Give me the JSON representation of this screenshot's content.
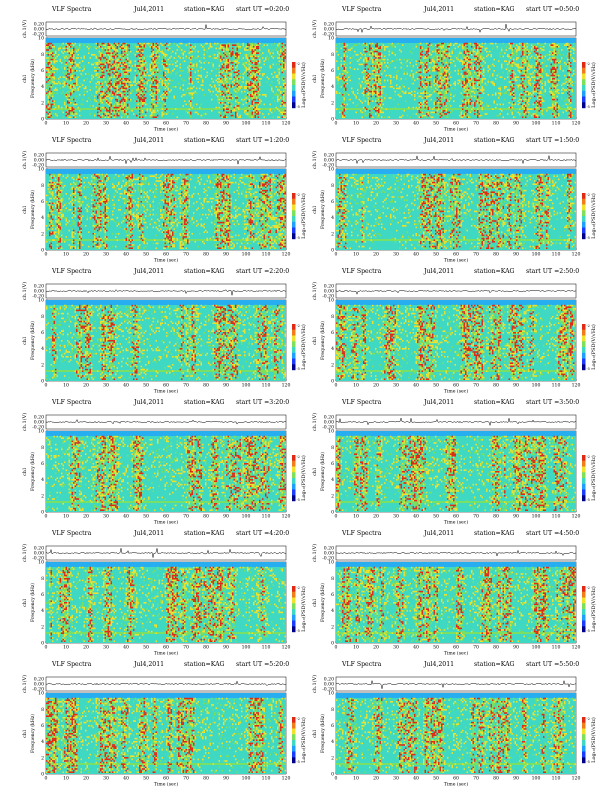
{
  "figure": {
    "panel_title": "VLF Spectra",
    "date": "Jul4,2011",
    "station": "station=KAG",
    "start_prefix": "start UT"
  },
  "chart_data": [
    {
      "type": "heatmap",
      "start_ut": "=0:20:0",
      "x_ticks": [
        0,
        10,
        20,
        30,
        40,
        50,
        60,
        70,
        80,
        90,
        100,
        110,
        120
      ],
      "y_ticks": [
        0,
        2,
        4,
        6,
        8,
        10
      ],
      "ch1_ticks": [
        "0.20",
        "0.00",
        "-0.20"
      ],
      "xlabel": "Time  (sec)",
      "ylabel": "Frequency  (kHz)",
      "ylabel2": "ch1",
      "ch1_label": "ch.1(V)",
      "colorbar_label": "Log₁₀(PSD(V/√Hz)",
      "cb_tick_top": "-2",
      "cb_tick_bottom": "-5"
    },
    {
      "type": "heatmap",
      "start_ut": "=0:50:0",
      "x_ticks": [
        0,
        10,
        20,
        30,
        40,
        50,
        60,
        70,
        80,
        90,
        100,
        110,
        120
      ],
      "y_ticks": [
        0,
        2,
        4,
        6,
        8,
        10
      ],
      "ch1_ticks": [
        "0.20",
        "0.00",
        "-0.20"
      ],
      "xlabel": "Time  (sec)",
      "ylabel": "Frequency  (kHz)",
      "ylabel2": "ch1",
      "ch1_label": "ch.1(V)",
      "colorbar_label": "Log₁₀(PSD(V/√Hz)",
      "cb_tick_top": "-2",
      "cb_tick_bottom": "-5"
    },
    {
      "type": "heatmap",
      "start_ut": "=1:20:0",
      "x_ticks": [
        0,
        10,
        20,
        30,
        40,
        50,
        60,
        70,
        80,
        90,
        100,
        110,
        120
      ],
      "y_ticks": [
        0,
        2,
        4,
        6,
        8,
        10
      ],
      "ch1_ticks": [
        "0.20",
        "0.00",
        "-0.20"
      ],
      "xlabel": "Time  (sec)",
      "ylabel": "Frequency  (kHz)",
      "ylabel2": "ch1",
      "ch1_label": "ch.1(V)",
      "colorbar_label": "Log₁₀(PSD(V/√Hz)",
      "cb_tick_top": "-2",
      "cb_tick_bottom": "-5"
    },
    {
      "type": "heatmap",
      "start_ut": "=1:50:0",
      "x_ticks": [
        0,
        10,
        20,
        30,
        40,
        50,
        60,
        70,
        80,
        90,
        100,
        110,
        120
      ],
      "y_ticks": [
        0,
        2,
        4,
        6,
        8,
        10
      ],
      "ch1_ticks": [
        "0.20",
        "0.00",
        "-0.20"
      ],
      "xlabel": "Time  (sec)",
      "ylabel": "Frequency  (kHz)",
      "ylabel2": "ch1",
      "ch1_label": "ch.1(V)",
      "colorbar_label": "Log₁₀(PSD(V/√Hz)",
      "cb_tick_top": "-2",
      "cb_tick_bottom": "-5"
    },
    {
      "type": "heatmap",
      "start_ut": "=2:20:0",
      "x_ticks": [
        0,
        10,
        20,
        30,
        40,
        50,
        60,
        70,
        80,
        90,
        100,
        110,
        120
      ],
      "y_ticks": [
        0,
        2,
        4,
        6,
        8,
        10
      ],
      "ch1_ticks": [
        "0.20",
        "0.00",
        "-0.20"
      ],
      "xlabel": "Time  (sec)",
      "ylabel": "Frequency  (kHz)",
      "ylabel2": "ch1",
      "ch1_label": "ch.1(V)",
      "colorbar_label": "Log₁₀(PSD(V/√Hz)",
      "cb_tick_top": "-2",
      "cb_tick_bottom": "-5"
    },
    {
      "type": "heatmap",
      "start_ut": "=2:50:0",
      "x_ticks": [
        0,
        10,
        20,
        30,
        40,
        50,
        60,
        70,
        80,
        90,
        100,
        110,
        120
      ],
      "y_ticks": [
        0,
        2,
        4,
        6,
        8,
        10
      ],
      "ch1_ticks": [
        "0.20",
        "0.00",
        "-0.20"
      ],
      "xlabel": "Time  (sec)",
      "ylabel": "Frequency  (kHz)",
      "ylabel2": "ch1",
      "ch1_label": "ch.1(V)",
      "colorbar_label": "Log₁₀(PSD(V/√Hz)",
      "cb_tick_top": "-2",
      "cb_tick_bottom": "-5"
    },
    {
      "type": "heatmap",
      "start_ut": "=3:20:0",
      "x_ticks": [
        0,
        10,
        20,
        30,
        40,
        50,
        60,
        70,
        80,
        90,
        100,
        110,
        120
      ],
      "y_ticks": [
        0,
        2,
        4,
        6,
        8,
        10
      ],
      "ch1_ticks": [
        "0.20",
        "0.00",
        "-0.20"
      ],
      "xlabel": "Time  (sec)",
      "ylabel": "Frequency  (kHz)",
      "ylabel2": "ch1",
      "ch1_label": "ch.1(V)",
      "colorbar_label": "Log₁₀(PSD(V/√Hz)",
      "cb_tick_top": "-2",
      "cb_tick_bottom": "-5"
    },
    {
      "type": "heatmap",
      "start_ut": "=3:50:0",
      "x_ticks": [
        0,
        10,
        20,
        30,
        40,
        50,
        60,
        70,
        80,
        90,
        100,
        110,
        120
      ],
      "y_ticks": [
        0,
        2,
        4,
        6,
        8,
        10
      ],
      "ch1_ticks": [
        "0.20",
        "0.00",
        "-0.20"
      ],
      "xlabel": "Time  (sec)",
      "ylabel": "Frequency  (kHz)",
      "ylabel2": "ch1",
      "ch1_label": "ch.1(V)",
      "colorbar_label": "Log₁₀(PSD(V/√Hz)",
      "cb_tick_top": "-2",
      "cb_tick_bottom": "-5"
    },
    {
      "type": "heatmap",
      "start_ut": "=4:20:0",
      "x_ticks": [
        0,
        10,
        20,
        30,
        40,
        50,
        60,
        70,
        80,
        90,
        100,
        110,
        120
      ],
      "y_ticks": [
        0,
        2,
        4,
        6,
        8,
        10
      ],
      "ch1_ticks": [
        "0.20",
        "0.00",
        "-0.20"
      ],
      "xlabel": "Time  (sec)",
      "ylabel": "Frequency  (kHz)",
      "ylabel2": "ch1",
      "ch1_label": "ch.1(V)",
      "colorbar_label": "Log₁₀(PSD(V/√Hz)",
      "cb_tick_top": "-2",
      "cb_tick_bottom": "-5"
    },
    {
      "type": "heatmap",
      "start_ut": "=4:50:0",
      "x_ticks": [
        0,
        10,
        20,
        30,
        40,
        50,
        60,
        70,
        80,
        90,
        100,
        110,
        120
      ],
      "y_ticks": [
        0,
        2,
        4,
        6,
        8,
        10
      ],
      "ch1_ticks": [
        "0.20",
        "0.00",
        "-0.20"
      ],
      "xlabel": "Time  (sec)",
      "ylabel": "Frequency  (kHz)",
      "ylabel2": "ch1",
      "ch1_label": "ch.1(V)",
      "colorbar_label": "Log₁₀(PSD(V/√Hz)",
      "cb_tick_top": "-2",
      "cb_tick_bottom": "-5"
    },
    {
      "type": "heatmap",
      "start_ut": "=5:20:0",
      "x_ticks": [
        0,
        10,
        20,
        30,
        40,
        50,
        60,
        70,
        80,
        90,
        100,
        110,
        120
      ],
      "y_ticks": [
        0,
        2,
        4,
        6,
        8,
        10
      ],
      "ch1_ticks": [
        "0.20",
        "0.00",
        "-0.20"
      ],
      "xlabel": "Time  (sec)",
      "ylabel": "Frequency  (kHz)",
      "ylabel2": "ch1",
      "ch1_label": "ch.1(V)",
      "colorbar_label": "Log₁₀(PSD(V/√Hz)",
      "cb_tick_top": "-2",
      "cb_tick_bottom": "-5"
    },
    {
      "type": "heatmap",
      "start_ut": "=5:50:0",
      "x_ticks": [
        0,
        10,
        20,
        30,
        40,
        50,
        60,
        70,
        80,
        90,
        100,
        110,
        120
      ],
      "y_ticks": [
        0,
        2,
        4,
        6,
        8,
        10
      ],
      "ch1_ticks": [
        "0.20",
        "0.00",
        "-0.20"
      ],
      "xlabel": "Time  (sec)",
      "ylabel": "Frequency  (kHz)",
      "ylabel2": "ch1",
      "ch1_label": "ch.1(V)",
      "colorbar_label": "Log₁₀(PSD(V/√Hz)",
      "cb_tick_top": "-2",
      "cb_tick_bottom": "-5"
    }
  ],
  "colors": {
    "low": "#1f9fff",
    "background": "#3fd9c3",
    "mid": "#7ee05a",
    "high": "#f0e12a",
    "peak": "#e02a14",
    "colorbar": [
      "#e02a14",
      "#f07c1a",
      "#f0e12a",
      "#7ee05a",
      "#3fd9c3",
      "#1f9fff",
      "#1c3cff",
      "#00008b"
    ]
  }
}
